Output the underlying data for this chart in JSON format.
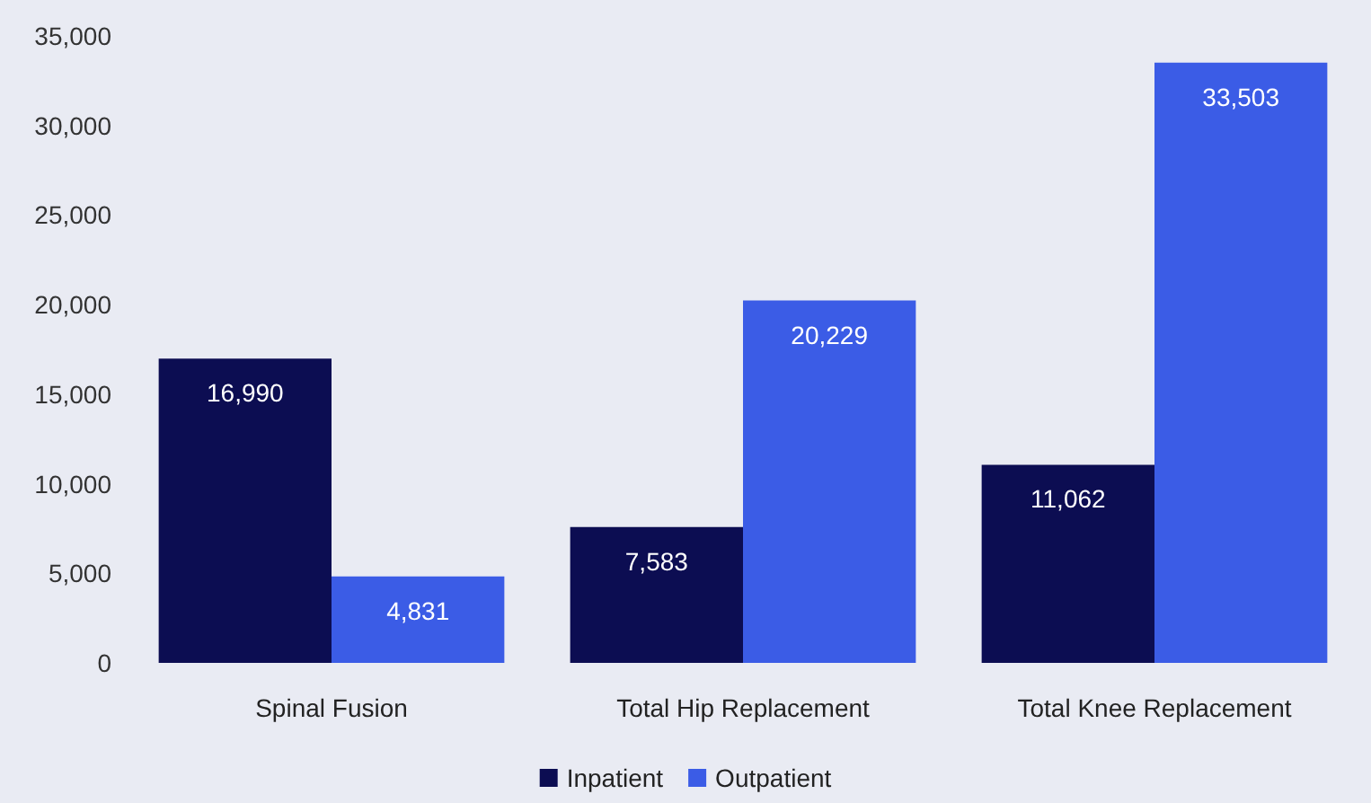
{
  "chart_data": {
    "type": "bar",
    "categories": [
      "Spinal Fusion",
      "Total Hip Replacement",
      "Total Knee Replacement"
    ],
    "series": [
      {
        "name": "Inpatient",
        "color": "#0c0d52",
        "values": [
          16990,
          7583,
          11062
        ],
        "value_labels": [
          "16,990",
          "7,583",
          "11,062"
        ]
      },
      {
        "name": "Outpatient",
        "color": "#3b5ce6",
        "values": [
          4831,
          20229,
          33503
        ],
        "value_labels": [
          "4,831",
          "20,229",
          "33,503"
        ]
      }
    ],
    "ylim": [
      0,
      35000
    ],
    "yticks": [
      {
        "value": 0,
        "label": "0"
      },
      {
        "value": 5000,
        "label": "5,000"
      },
      {
        "value": 10000,
        "label": "10,000"
      },
      {
        "value": 15000,
        "label": "15,000"
      },
      {
        "value": 20000,
        "label": "20,000"
      },
      {
        "value": 25000,
        "label": "25,000"
      },
      {
        "value": 30000,
        "label": "30,000"
      },
      {
        "value": 35000,
        "label": "35,000"
      }
    ],
    "grid": false,
    "legend": "bottom"
  }
}
